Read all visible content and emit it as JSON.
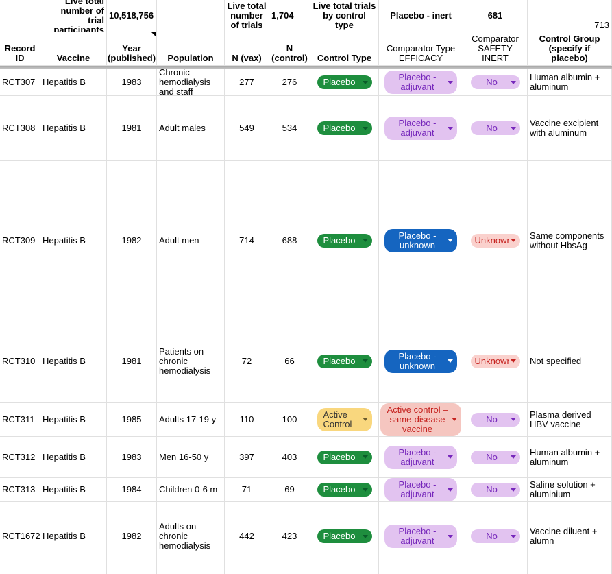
{
  "summary": {
    "participants_label": "Live total number of trial participants",
    "participants_value": "10,518,756",
    "trials_label": "Live total number of trials",
    "trials_value": "1,704",
    "by_control_label": "Live total trials by control type",
    "placebo_inert_label": "Placebo - inert",
    "placebo_inert_value": "681",
    "other_value": "713"
  },
  "columns": [
    {
      "id": "record_id",
      "label": "Record ID",
      "bold": true
    },
    {
      "id": "vaccine",
      "label": "Vaccine",
      "bold": true
    },
    {
      "id": "year",
      "label": "Year (published)",
      "bold": true
    },
    {
      "id": "population",
      "label": "Population",
      "bold": true
    },
    {
      "id": "n_vax",
      "label": "N (vax)",
      "bold": true
    },
    {
      "id": "n_control",
      "label": "N (control)",
      "bold": true
    },
    {
      "id": "control_type",
      "label": "Control Type",
      "bold": true
    },
    {
      "id": "comparator_efficacy",
      "label": "Comparator Type EFFICACY",
      "bold": false
    },
    {
      "id": "comparator_safety",
      "label": "Comparator SAFETY INERT",
      "bold": false
    },
    {
      "id": "control_group",
      "label": "Control Group (specify if placebo)",
      "bold": true
    }
  ],
  "note_indicator": {
    "column_id": "year"
  },
  "chip_styles": {
    "green": {
      "bg": "#1e8e3e",
      "fg": "#ffffff",
      "arrow": "#0a5c2a"
    },
    "purple": {
      "bg": "#e2c3f0",
      "fg": "#7627bb",
      "arrow": "#7627bb"
    },
    "blue": {
      "bg": "#1565c0",
      "fg": "#ffffff",
      "arrow": "#ffffff"
    },
    "pink": {
      "bg": "#fad1cd",
      "fg": "#c5221f",
      "arrow": "#c5221f"
    },
    "yellow": {
      "bg": "#f9d77e",
      "fg": "#333333",
      "arrow": "#6b5b2e"
    },
    "salmon": {
      "bg": "#f5c6c0",
      "fg": "#c5221f",
      "arrow": "#c5221f"
    }
  },
  "rows": [
    {
      "record_id": "RCT307",
      "vaccine": "Hepatitis B",
      "year": "1983",
      "population": "Chronic hemodialysis and staff",
      "n_vax": "277",
      "n_control": "276",
      "control_type": {
        "label": "Placebo",
        "style": "green"
      },
      "comparator_efficacy": {
        "label": "Placebo - adjuvant",
        "style": "purple"
      },
      "comparator_safety": {
        "label": "No",
        "style": "purple"
      },
      "control_group": "Human albumin + aluminum"
    },
    {
      "record_id": "RCT308",
      "vaccine": "Hepatitis B",
      "year": "1981",
      "population": "Adult males",
      "n_vax": "549",
      "n_control": "534",
      "control_type": {
        "label": "Placebo",
        "style": "green"
      },
      "comparator_efficacy": {
        "label": "Placebo - adjuvant",
        "style": "purple"
      },
      "comparator_safety": {
        "label": "No",
        "style": "purple"
      },
      "control_group": "Vaccine excipient with aluminum"
    },
    {
      "record_id": "RCT309",
      "vaccine": "Hepatitis B",
      "year": "1982",
      "population": "Adult men",
      "n_vax": "714",
      "n_control": "688",
      "control_type": {
        "label": "Placebo",
        "style": "green"
      },
      "comparator_efficacy": {
        "label": "Placebo - unknown",
        "style": "blue"
      },
      "comparator_safety": {
        "label": "Unknown",
        "style": "pink"
      },
      "control_group": "Same components without HbsAg"
    },
    {
      "record_id": "RCT310",
      "vaccine": "Hepatitis B",
      "year": "1981",
      "population": "Patients on chronic hemodialysis",
      "n_vax": "72",
      "n_control": "66",
      "control_type": {
        "label": "Placebo",
        "style": "green"
      },
      "comparator_efficacy": {
        "label": "Placebo - unknown",
        "style": "blue"
      },
      "comparator_safety": {
        "label": "Unknown",
        "style": "pink"
      },
      "control_group": "Not specified"
    },
    {
      "record_id": "RCT311",
      "vaccine": "Hepatitis B",
      "year": "1985",
      "population": "Adults 17-19 y",
      "n_vax": "110",
      "n_control": "100",
      "control_type": {
        "label": "Active Control",
        "style": "yellow"
      },
      "comparator_efficacy": {
        "label": "Active control – same-disease vaccine",
        "style": "salmon"
      },
      "comparator_safety": {
        "label": "No",
        "style": "purple"
      },
      "control_group": "Plasma derived HBV vaccine"
    },
    {
      "record_id": "RCT312",
      "vaccine": "Hepatitis B",
      "year": "1983",
      "population": "Men 16-50 y",
      "n_vax": "397",
      "n_control": "403",
      "control_type": {
        "label": "Placebo",
        "style": "green"
      },
      "comparator_efficacy": {
        "label": "Placebo - adjuvant",
        "style": "purple"
      },
      "comparator_safety": {
        "label": "No",
        "style": "purple"
      },
      "control_group": "Human albumin + aluminum"
    },
    {
      "record_id": "RCT313",
      "vaccine": "Hepatitis B",
      "year": "1984",
      "population": "Children 0-6 m",
      "n_vax": "71",
      "n_control": "69",
      "control_type": {
        "label": "Placebo",
        "style": "green"
      },
      "comparator_efficacy": {
        "label": "Placebo - adjuvant",
        "style": "purple"
      },
      "comparator_safety": {
        "label": "No",
        "style": "purple"
      },
      "control_group": "Saline solution + aluminium"
    },
    {
      "record_id": "RCT1672",
      "vaccine": "Hepatitis B",
      "year": "1982",
      "population": "Adults on chronic hemodialysis",
      "n_vax": "442",
      "n_control": "423",
      "control_type": {
        "label": "Placebo",
        "style": "green"
      },
      "comparator_efficacy": {
        "label": "Placebo - adjuvant",
        "style": "purple"
      },
      "comparator_safety": {
        "label": "No",
        "style": "purple"
      },
      "control_group": "Vaccine diluent + alumn"
    }
  ]
}
